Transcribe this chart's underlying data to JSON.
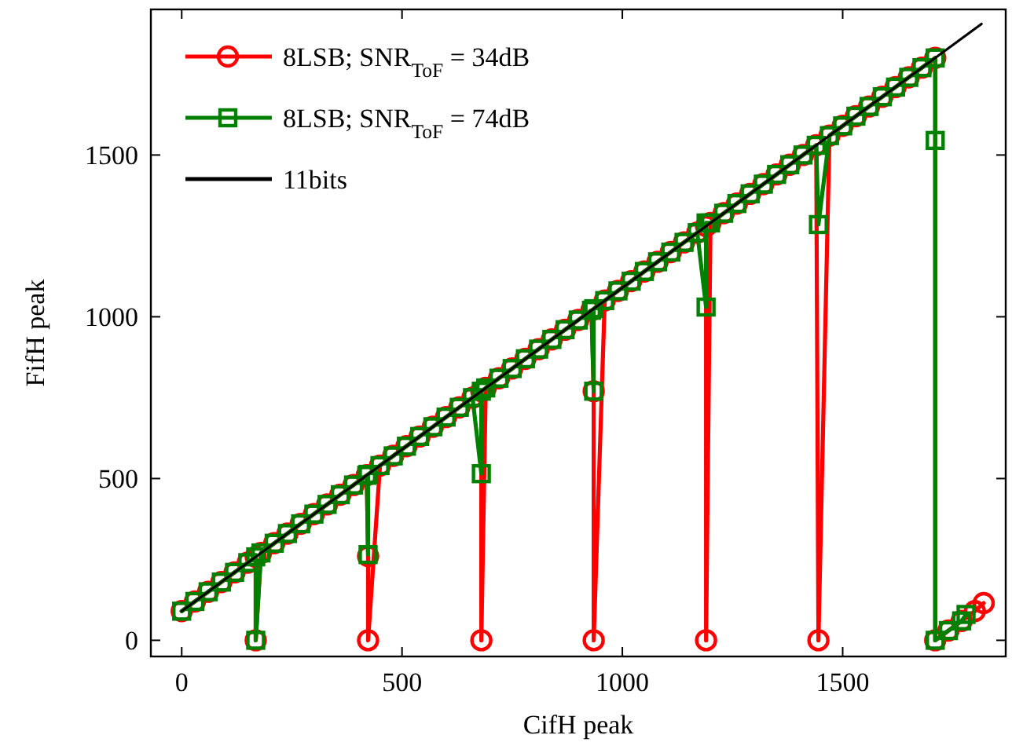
{
  "chart_data": {
    "type": "line",
    "xlabel": "CifH peak",
    "ylabel": "FifH peak",
    "xlim": [
      -70,
      1870
    ],
    "ylim": [
      -50,
      1950
    ],
    "xticks": [
      0,
      500,
      1000,
      1500
    ],
    "yticks": [
      0,
      500,
      1000,
      1500
    ],
    "grid": false,
    "legend": "top left",
    "series": [
      {
        "name": "8LSB; SNR$_{ToF}$ = 34dB",
        "color": "#ff0000",
        "marker": "circle",
        "x": [
          0,
          30,
          60,
          90,
          120,
          150,
          168,
          168,
          180,
          210,
          240,
          270,
          300,
          330,
          360,
          390,
          420,
          423,
          423,
          450,
          480,
          510,
          540,
          570,
          600,
          630,
          660,
          680,
          680,
          690,
          720,
          750,
          780,
          810,
          840,
          870,
          900,
          930,
          935,
          935,
          960,
          990,
          1020,
          1050,
          1080,
          1110,
          1140,
          1170,
          1190,
          1190,
          1200,
          1230,
          1260,
          1290,
          1320,
          1350,
          1380,
          1410,
          1440,
          1445,
          1470,
          1500,
          1530,
          1560,
          1590,
          1620,
          1650,
          1680,
          1710,
          1710,
          1740,
          1770,
          1800,
          1820
        ],
        "values": [
          90,
          120,
          150,
          180,
          210,
          240,
          258,
          0,
          270,
          300,
          330,
          360,
          390,
          420,
          450,
          480,
          510,
          260,
          0,
          540,
          570,
          600,
          630,
          660,
          690,
          720,
          750,
          770,
          0,
          780,
          810,
          840,
          870,
          900,
          930,
          960,
          990,
          1020,
          770,
          0,
          1050,
          1080,
          1110,
          1140,
          1170,
          1200,
          1230,
          1260,
          1280,
          0,
          1290,
          1320,
          1350,
          1380,
          1410,
          1440,
          1470,
          1500,
          1530,
          0,
          1560,
          1590,
          1620,
          1650,
          1680,
          1710,
          1740,
          1770,
          1800,
          0,
          30,
          60,
          90,
          115
        ]
      },
      {
        "name": "8LSB; SNR$_{ToF}$ = 74dB",
        "color": "#008000",
        "marker": "square",
        "x": [
          0,
          30,
          60,
          90,
          120,
          150,
          168,
          168,
          180,
          210,
          240,
          270,
          300,
          330,
          360,
          390,
          420,
          423,
          423,
          450,
          480,
          510,
          540,
          570,
          600,
          630,
          660,
          680,
          680,
          690,
          720,
          750,
          780,
          810,
          840,
          870,
          900,
          930,
          935,
          935,
          960,
          990,
          1020,
          1050,
          1080,
          1110,
          1140,
          1170,
          1190,
          1190,
          1200,
          1230,
          1260,
          1290,
          1320,
          1350,
          1380,
          1410,
          1440,
          1445,
          1470,
          1500,
          1530,
          1560,
          1590,
          1620,
          1650,
          1680,
          1710,
          1710,
          1710,
          1740,
          1770,
          1780
        ],
        "values": [
          90,
          120,
          150,
          180,
          210,
          240,
          258,
          0,
          270,
          300,
          330,
          360,
          390,
          420,
          450,
          480,
          510,
          265,
          513,
          540,
          570,
          600,
          630,
          660,
          690,
          720,
          750,
          515,
          770,
          780,
          810,
          840,
          870,
          900,
          930,
          960,
          990,
          1020,
          770,
          1025,
          1050,
          1080,
          1110,
          1140,
          1170,
          1200,
          1230,
          1260,
          1030,
          1290,
          1290,
          1320,
          1350,
          1380,
          1410,
          1440,
          1470,
          1500,
          1530,
          1285,
          1560,
          1590,
          1620,
          1650,
          1680,
          1710,
          1740,
          1770,
          1800,
          1545,
          0,
          30,
          60,
          80
        ]
      },
      {
        "name": "11bits",
        "color": "#000000",
        "marker": "none",
        "x": [
          0,
          1815
        ],
        "values": [
          90,
          1905
        ]
      }
    ]
  }
}
